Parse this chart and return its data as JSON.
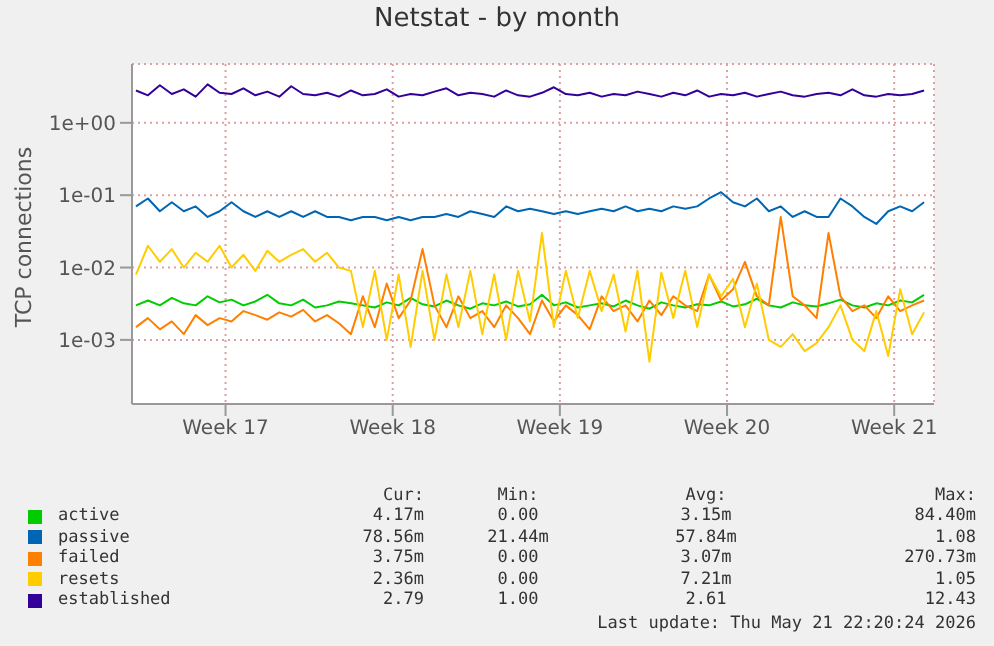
{
  "chart_data": {
    "type": "line",
    "title": "Netstat - by month",
    "ylabel": "TCP connections",
    "log": "y",
    "grid": true,
    "legend": "bottom",
    "marker": "none",
    "line_style": "solid",
    "xlim": [
      "2026-04-18T14:00",
      "2026-05-22T04:00"
    ],
    "xticks": [
      {
        "value": "2026-04-22T12:00",
        "label": "Week 17"
      },
      {
        "value": "2026-04-29T12:00",
        "label": "Week 18"
      },
      {
        "value": "2026-05-06T12:00",
        "label": "Week 19"
      },
      {
        "value": "2026-05-13T12:00",
        "label": "Week 20"
      },
      {
        "value": "2026-05-20T12:00",
        "label": "Week 21"
      }
    ],
    "ylim": [
      0.00013,
      6.5
    ],
    "yticks": [
      {
        "value": 0.001,
        "label": "1e-03"
      },
      {
        "value": 0.01,
        "label": "1e-02"
      },
      {
        "value": 0.1,
        "label": "1e-01"
      },
      {
        "value": 1,
        "label": "1e+00"
      }
    ],
    "x": [
      "2026-04-18T18:00",
      "2026-04-19T06:00",
      "2026-04-19T18:00",
      "2026-04-20T06:00",
      "2026-04-20T18:00",
      "2026-04-21T06:00",
      "2026-04-21T18:00",
      "2026-04-22T06:00",
      "2026-04-22T18:00",
      "2026-04-23T06:00",
      "2026-04-23T18:00",
      "2026-04-24T06:00",
      "2026-04-24T18:00",
      "2026-04-25T06:00",
      "2026-04-25T18:00",
      "2026-04-26T06:00",
      "2026-04-26T18:00",
      "2026-04-27T06:00",
      "2026-04-27T18:00",
      "2026-04-28T06:00",
      "2026-04-28T18:00",
      "2026-04-29T06:00",
      "2026-04-29T18:00",
      "2026-04-30T06:00",
      "2026-04-30T18:00",
      "2026-05-01T06:00",
      "2026-05-01T18:00",
      "2026-05-02T06:00",
      "2026-05-02T18:00",
      "2026-05-03T06:00",
      "2026-05-03T18:00",
      "2026-05-04T06:00",
      "2026-05-04T18:00",
      "2026-05-05T06:00",
      "2026-05-05T18:00",
      "2026-05-06T06:00",
      "2026-05-06T18:00",
      "2026-05-07T06:00",
      "2026-05-07T18:00",
      "2026-05-08T06:00",
      "2026-05-08T18:00",
      "2026-05-09T06:00",
      "2026-05-09T18:00",
      "2026-05-10T06:00",
      "2026-05-10T18:00",
      "2026-05-11T06:00",
      "2026-05-11T18:00",
      "2026-05-12T06:00",
      "2026-05-12T18:00",
      "2026-05-13T06:00",
      "2026-05-13T18:00",
      "2026-05-14T06:00",
      "2026-05-14T18:00",
      "2026-05-15T06:00",
      "2026-05-15T18:00",
      "2026-05-16T06:00",
      "2026-05-16T18:00",
      "2026-05-17T06:00",
      "2026-05-17T18:00",
      "2026-05-18T06:00",
      "2026-05-18T18:00",
      "2026-05-19T06:00",
      "2026-05-19T18:00",
      "2026-05-20T06:00",
      "2026-05-20T18:00",
      "2026-05-21T06:00",
      "2026-05-21T18:00"
    ],
    "series": [
      {
        "name": "active",
        "color": "#00cc00",
        "values": [
          0.003,
          0.0035,
          0.003,
          0.0038,
          0.0032,
          0.003,
          0.004,
          0.0033,
          0.0036,
          0.003,
          0.0034,
          0.0042,
          0.0032,
          0.003,
          0.0036,
          0.0028,
          0.003,
          0.0034,
          0.0032,
          0.003,
          0.0028,
          0.0033,
          0.003,
          0.0038,
          0.0031,
          0.0029,
          0.0035,
          0.003,
          0.0027,
          0.0032,
          0.003,
          0.0034,
          0.0029,
          0.0031,
          0.0042,
          0.003,
          0.0033,
          0.0028,
          0.003,
          0.0032,
          0.0029,
          0.0035,
          0.003,
          0.0027,
          0.0033,
          0.003,
          0.0028,
          0.0031,
          0.003,
          0.0034,
          0.0029,
          0.0031,
          0.0037,
          0.003,
          0.0028,
          0.0033,
          0.003,
          0.0029,
          0.0032,
          0.0036,
          0.003,
          0.0028,
          0.0032,
          0.003,
          0.0035,
          0.0033,
          0.0042
        ]
      },
      {
        "name": "passive",
        "color": "#0066b3",
        "values": [
          0.07,
          0.09,
          0.06,
          0.08,
          0.06,
          0.07,
          0.05,
          0.06,
          0.08,
          0.06,
          0.05,
          0.06,
          0.05,
          0.06,
          0.05,
          0.06,
          0.05,
          0.05,
          0.045,
          0.05,
          0.05,
          0.045,
          0.05,
          0.045,
          0.05,
          0.05,
          0.055,
          0.05,
          0.06,
          0.055,
          0.05,
          0.07,
          0.06,
          0.065,
          0.06,
          0.055,
          0.06,
          0.055,
          0.06,
          0.065,
          0.06,
          0.07,
          0.06,
          0.065,
          0.06,
          0.07,
          0.065,
          0.07,
          0.09,
          0.11,
          0.08,
          0.07,
          0.09,
          0.06,
          0.07,
          0.05,
          0.06,
          0.05,
          0.05,
          0.09,
          0.07,
          0.05,
          0.04,
          0.06,
          0.07,
          0.06,
          0.08
        ]
      },
      {
        "name": "failed",
        "color": "#ff8000",
        "values": [
          0.0015,
          0.002,
          0.0014,
          0.0018,
          0.0012,
          0.0022,
          0.0016,
          0.002,
          0.0018,
          0.0025,
          0.0022,
          0.0019,
          0.0024,
          0.0021,
          0.0026,
          0.0018,
          0.0022,
          0.0017,
          0.0012,
          0.004,
          0.0015,
          0.006,
          0.002,
          0.0035,
          0.018,
          0.003,
          0.0015,
          0.004,
          0.002,
          0.0025,
          0.0015,
          0.003,
          0.002,
          0.0012,
          0.0035,
          0.0018,
          0.003,
          0.0022,
          0.0014,
          0.004,
          0.0025,
          0.003,
          0.0018,
          0.0035,
          0.0022,
          0.004,
          0.003,
          0.0025,
          0.008,
          0.0035,
          0.005,
          0.012,
          0.004,
          0.003,
          0.05,
          0.004,
          0.003,
          0.002,
          0.03,
          0.004,
          0.0025,
          0.003,
          0.002,
          0.004,
          0.0025,
          0.003,
          0.0035
        ]
      },
      {
        "name": "resets",
        "color": "#ffcc00",
        "values": [
          0.008,
          0.02,
          0.012,
          0.018,
          0.01,
          0.016,
          0.012,
          0.02,
          0.01,
          0.015,
          0.009,
          0.017,
          0.012,
          0.015,
          0.018,
          0.012,
          0.016,
          0.01,
          0.009,
          0.0015,
          0.009,
          0.001,
          0.008,
          0.0008,
          0.009,
          0.001,
          0.008,
          0.0015,
          0.009,
          0.0012,
          0.008,
          0.001,
          0.009,
          0.0018,
          0.03,
          0.0015,
          0.009,
          0.002,
          0.009,
          0.0025,
          0.008,
          0.0013,
          0.009,
          0.0005,
          0.0085,
          0.002,
          0.009,
          0.0015,
          0.008,
          0.004,
          0.007,
          0.0015,
          0.006,
          0.001,
          0.0008,
          0.0012,
          0.0007,
          0.0009,
          0.0015,
          0.003,
          0.001,
          0.0007,
          0.0025,
          0.0006,
          0.005,
          0.0012,
          0.0024
        ]
      },
      {
        "name": "established",
        "color": "#330099",
        "values": [
          2.8,
          2.4,
          3.3,
          2.5,
          2.9,
          2.3,
          3.4,
          2.6,
          2.5,
          3.0,
          2.4,
          2.7,
          2.3,
          3.2,
          2.5,
          2.4,
          2.6,
          2.3,
          2.8,
          2.4,
          2.5,
          2.9,
          2.3,
          2.5,
          2.4,
          2.7,
          3.0,
          2.4,
          2.6,
          2.5,
          2.3,
          2.8,
          2.4,
          2.3,
          2.6,
          3.1,
          2.5,
          2.4,
          2.6,
          2.3,
          2.5,
          2.4,
          2.7,
          2.5,
          2.3,
          2.6,
          2.4,
          2.8,
          2.3,
          2.5,
          2.4,
          2.6,
          2.3,
          2.5,
          2.7,
          2.4,
          2.3,
          2.5,
          2.6,
          2.4,
          2.9,
          2.4,
          2.3,
          2.5,
          2.4,
          2.5,
          2.8
        ]
      }
    ],
    "annotations": [
      "Cur:",
      "Min:",
      "Avg:",
      "Max:",
      "4.17m",
      "0.00",
      "3.15m",
      "84.40m",
      "78.56m",
      "21.44m",
      "57.84m",
      "1.08",
      "3.75m",
      "0.00",
      "3.07m",
      "270.73m",
      "2.36m",
      "0.00",
      "7.21m",
      "1.05",
      "2.79",
      "1.00",
      "2.61",
      "12.43",
      "Last update: Thu May 21 22:20:24 2026"
    ]
  }
}
